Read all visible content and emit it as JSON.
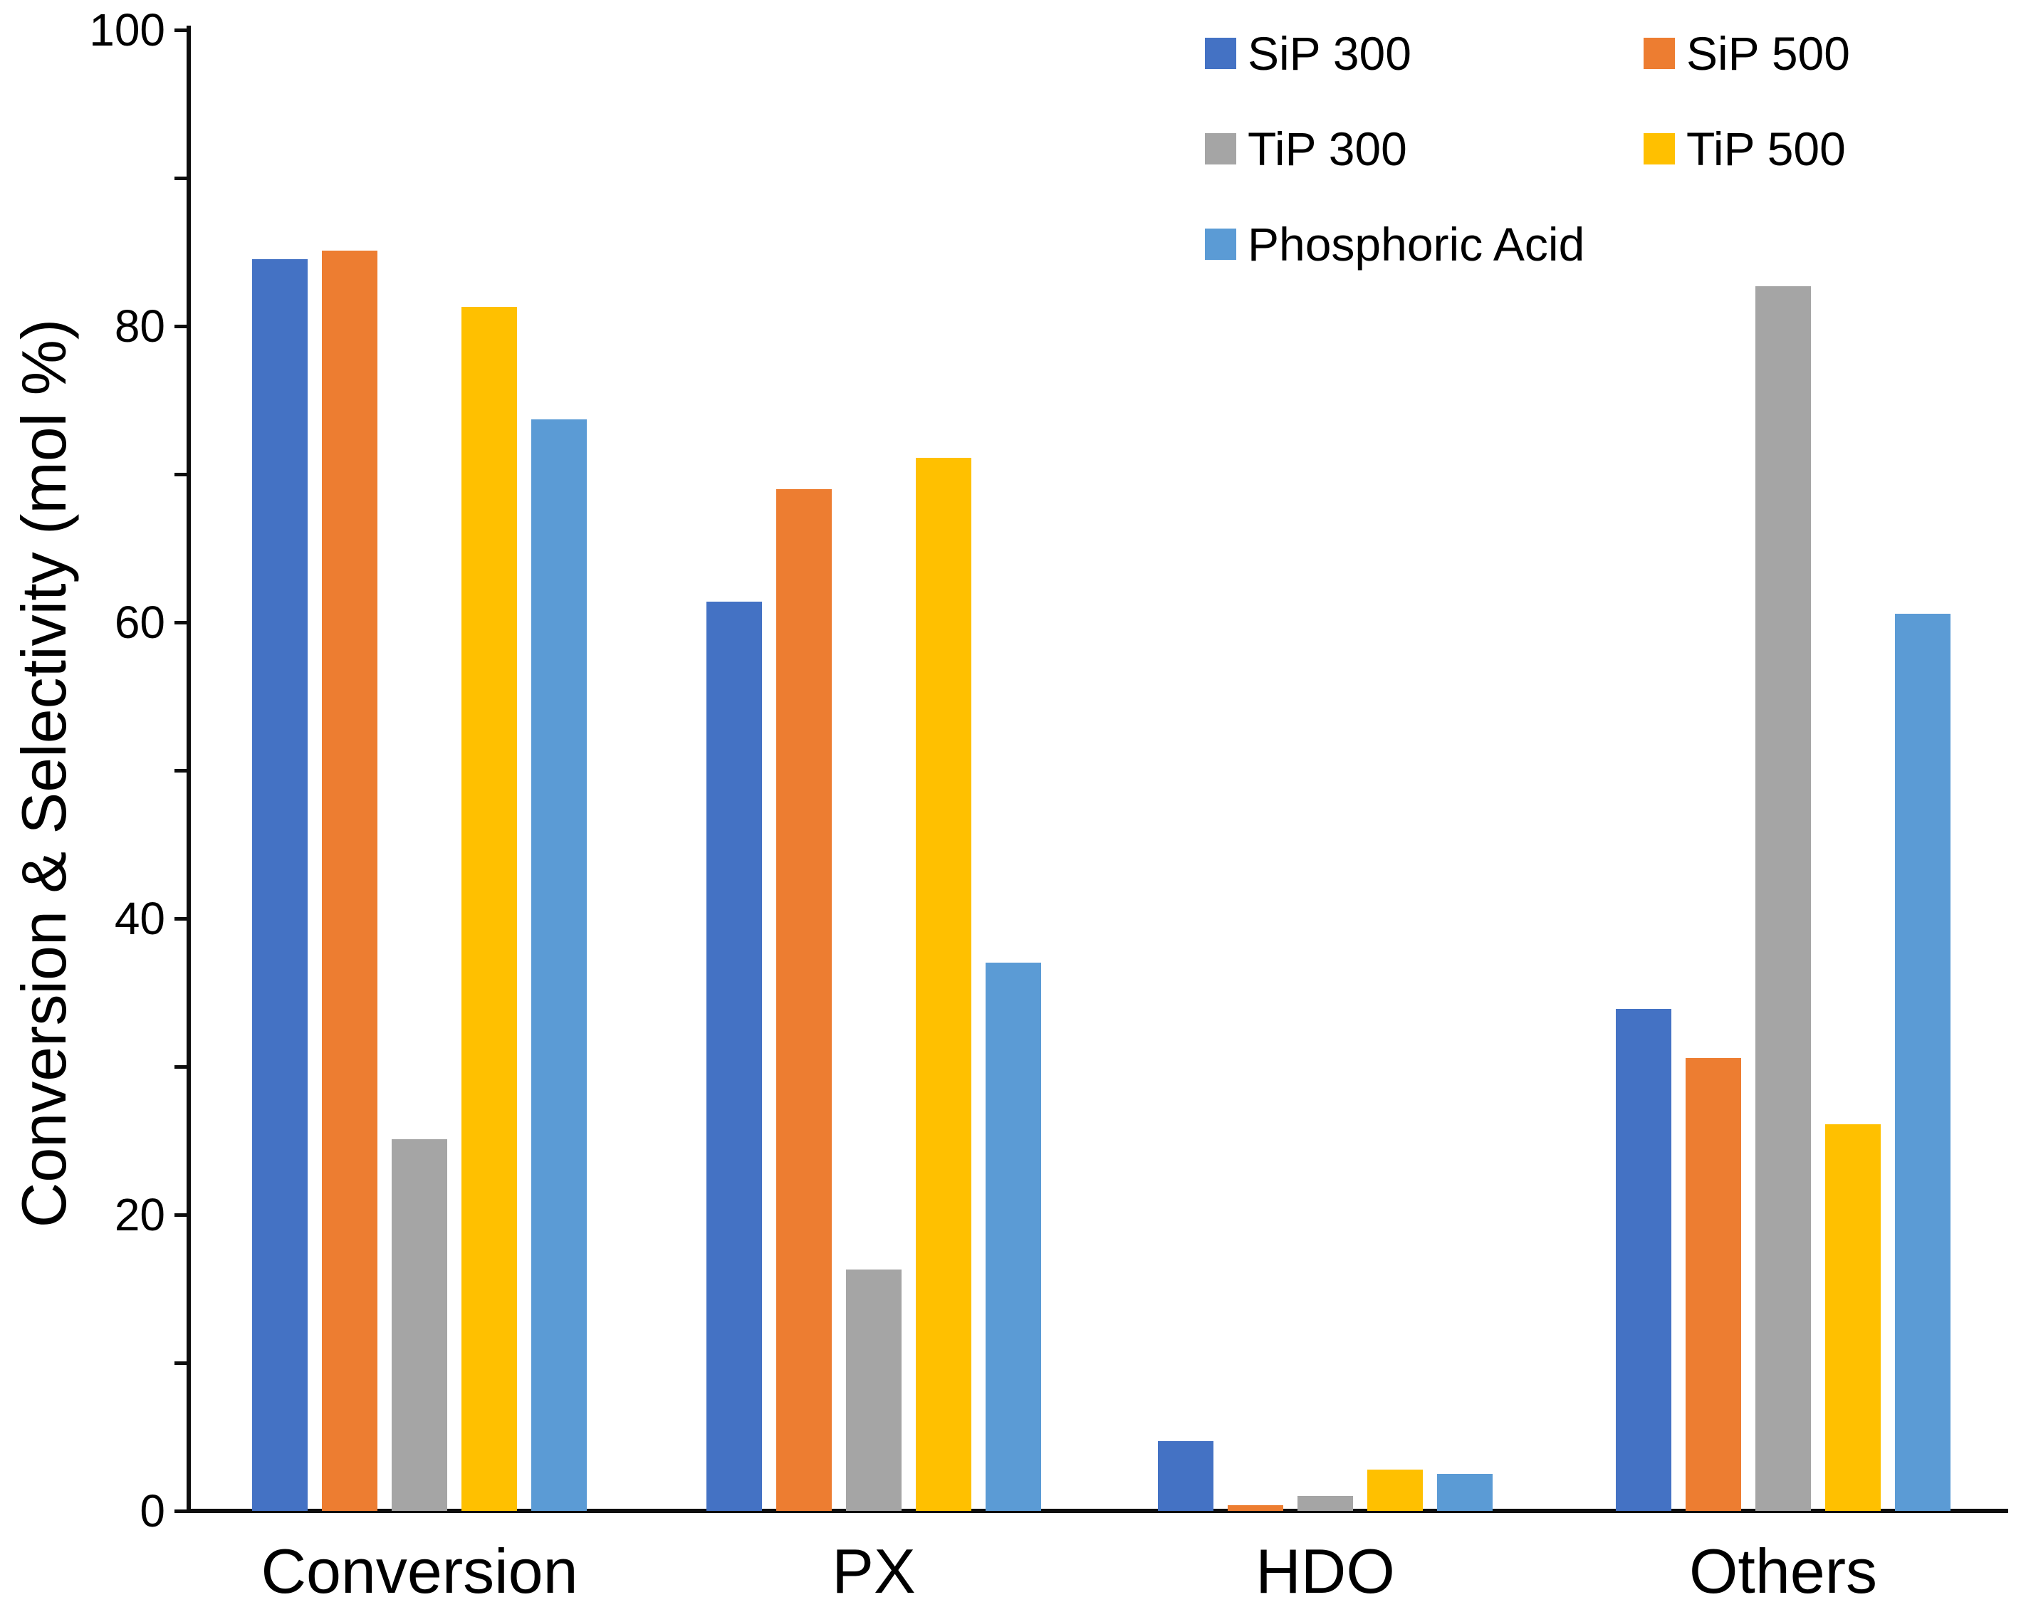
{
  "figure": {
    "y_axis_title": "Conversion & Selectivity (mol %)"
  },
  "legend": {
    "entries": [
      {
        "label": "SiP 300",
        "color": "#4472C4"
      },
      {
        "label": "SiP 500",
        "color": "#ED7D31"
      },
      {
        "label": "TiP 300",
        "color": "#A5A5A5"
      },
      {
        "label": "TiP 500",
        "color": "#FFC000"
      },
      {
        "label": "Phosphoric Acid",
        "color": "#5B9BD5"
      }
    ]
  },
  "chart_data": {
    "type": "bar",
    "categories": [
      "Conversion",
      "PX",
      "HDO",
      "Others"
    ],
    "series": [
      {
        "name": "SiP 300",
        "color": "#4472C4",
        "values": [
          84.5,
          61.4,
          4.7,
          33.9
        ]
      },
      {
        "name": "SiP 500",
        "color": "#ED7D31",
        "values": [
          85.1,
          69.0,
          0.4,
          30.6
        ]
      },
      {
        "name": "TiP 300",
        "color": "#A5A5A5",
        "values": [
          25.1,
          16.3,
          1.0,
          82.7
        ]
      },
      {
        "name": "TiP 500",
        "color": "#FFC000",
        "values": [
          81.3,
          71.1,
          2.8,
          26.1
        ]
      },
      {
        "name": "Phosphoric Acid",
        "color": "#5B9BD5",
        "values": [
          73.7,
          37.0,
          2.5,
          60.6
        ]
      }
    ],
    "ylabel": "Conversion & Selectivity (mol %)",
    "xlabel": "",
    "ylim": [
      0,
      100
    ],
    "yticks_major": [
      0,
      20,
      40,
      60,
      80,
      100
    ],
    "yticks_minor": [
      10,
      30,
      50,
      70,
      90
    ],
    "grid": false,
    "legend_position": "top-right"
  }
}
